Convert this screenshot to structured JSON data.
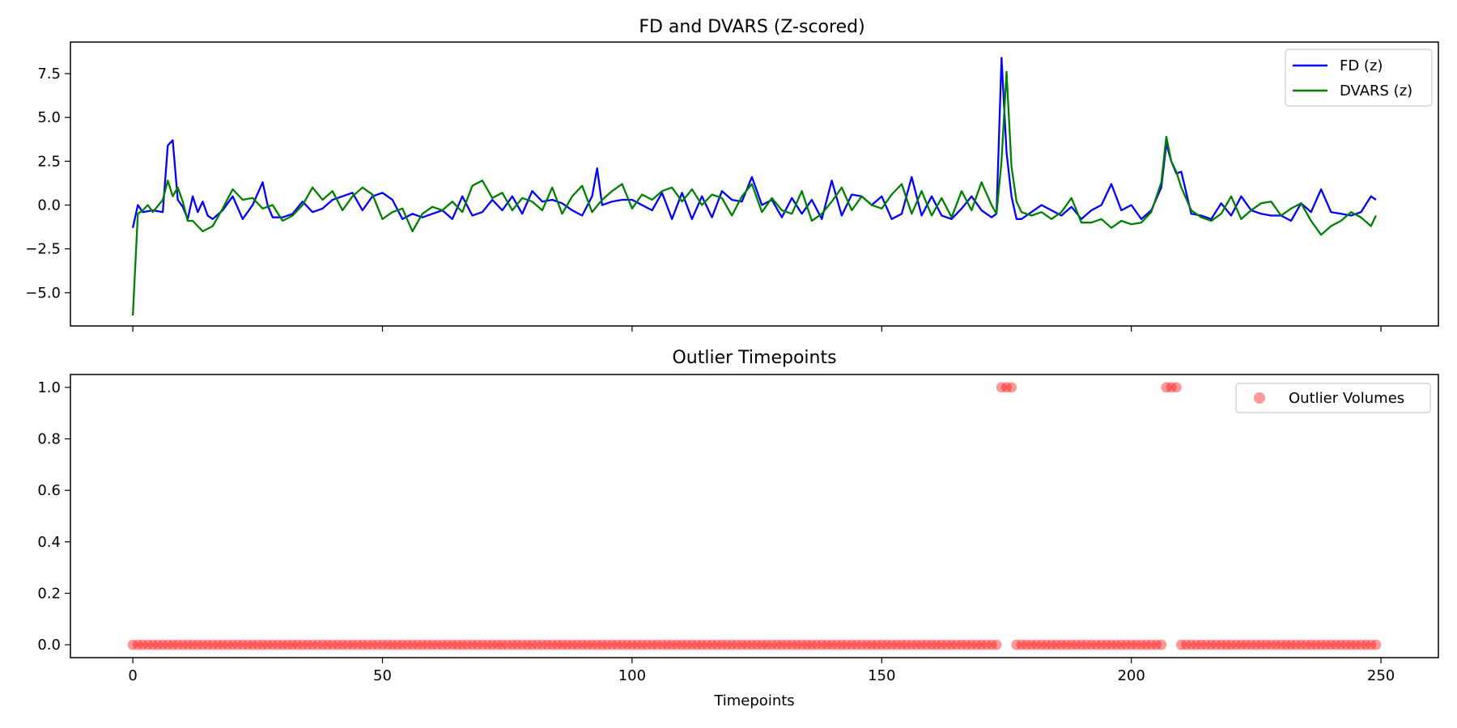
{
  "chart_data": [
    {
      "type": "line",
      "title": "FD and DVARS (Z-scored)",
      "xlabel": "",
      "ylabel": "",
      "xlim": [
        -12.5,
        261.5
      ],
      "ylim": [
        -6.9,
        9.3
      ],
      "x_ticks": [
        0,
        50,
        100,
        150,
        200,
        250
      ],
      "y_ticks": [
        7.5,
        5.0,
        2.5,
        0.0,
        -2.5,
        -5.0
      ],
      "y_tick_labels": [
        "7.5",
        "5.0",
        "2.5",
        "0.0",
        "−2.5",
        "−5.0"
      ],
      "x_tick_labels_visible": false,
      "legend_position": "top-right",
      "series": [
        {
          "name": "FD (z)",
          "color": "#0000ff",
          "x": [
            0,
            1,
            2,
            4,
            6,
            7,
            8,
            9,
            10,
            11,
            12,
            13,
            14,
            15,
            16,
            18,
            20,
            22,
            24,
            26,
            27,
            28,
            30,
            32,
            34,
            36,
            38,
            40,
            42,
            44,
            46,
            48,
            50,
            52,
            54,
            56,
            58,
            60,
            62,
            64,
            66,
            68,
            70,
            72,
            74,
            76,
            78,
            80,
            82,
            84,
            86,
            88,
            90,
            92,
            93,
            94,
            96,
            98,
            100,
            102,
            104,
            106,
            108,
            110,
            112,
            114,
            116,
            118,
            120,
            122,
            124,
            126,
            128,
            130,
            132,
            134,
            136,
            138,
            140,
            142,
            144,
            146,
            148,
            150,
            152,
            154,
            156,
            158,
            160,
            162,
            164,
            166,
            168,
            170,
            172,
            173,
            174,
            175,
            176,
            177,
            178,
            180,
            182,
            184,
            186,
            188,
            190,
            192,
            194,
            196,
            198,
            200,
            202,
            204,
            206,
            207,
            208,
            209,
            210,
            212,
            214,
            216,
            218,
            220,
            222,
            224,
            226,
            228,
            230,
            232,
            234,
            236,
            238,
            240,
            242,
            244,
            246,
            248,
            249
          ],
          "values": [
            -1.3,
            0.0,
            -0.4,
            -0.3,
            -0.4,
            3.4,
            3.7,
            0.3,
            -0.1,
            -0.8,
            0.5,
            -0.4,
            0.2,
            -0.6,
            -0.8,
            -0.3,
            0.5,
            -0.8,
            0.0,
            1.3,
            0.0,
            -0.7,
            -0.7,
            -0.5,
            0.2,
            -0.4,
            -0.2,
            0.3,
            0.5,
            0.7,
            -0.3,
            0.5,
            0.7,
            0.3,
            -0.8,
            -0.5,
            -0.7,
            -0.5,
            -0.3,
            -0.8,
            0.5,
            -0.6,
            -0.4,
            0.3,
            -0.3,
            0.5,
            -0.5,
            0.8,
            0.2,
            0.3,
            0.1,
            -0.3,
            -0.6,
            0.5,
            2.1,
            0.0,
            0.2,
            0.3,
            0.3,
            0.0,
            -0.3,
            0.7,
            -0.8,
            0.7,
            -0.8,
            0.5,
            -0.7,
            0.8,
            0.3,
            0.2,
            1.6,
            0.0,
            0.3,
            -0.7,
            0.4,
            -0.5,
            0.3,
            -0.8,
            1.4,
            -0.6,
            0.6,
            0.5,
            0.0,
            0.5,
            -0.8,
            -0.5,
            1.6,
            -0.6,
            0.5,
            -0.6,
            -0.8,
            -0.2,
            0.5,
            -0.3,
            -0.7,
            -0.5,
            8.4,
            3.0,
            0.5,
            -0.8,
            -0.8,
            -0.4,
            0.0,
            -0.3,
            -0.6,
            -0.1,
            -0.8,
            -0.3,
            0.0,
            1.2,
            -0.3,
            0.0,
            -0.8,
            -0.3,
            1.0,
            3.5,
            2.5,
            1.8,
            1.9,
            -0.5,
            -0.6,
            -0.8,
            0.1,
            -0.6,
            0.5,
            -0.3,
            -0.5,
            -0.6,
            -0.6,
            -0.9,
            0.1,
            -0.4,
            0.9,
            -0.4,
            -0.5,
            -0.6,
            -0.4,
            0.5,
            0.3
          ]
        },
        {
          "name": "DVARS (z)",
          "color": "#008000",
          "x": [
            0,
            1,
            2,
            3,
            4,
            6,
            7,
            8,
            9,
            10,
            11,
            12,
            14,
            16,
            18,
            20,
            22,
            24,
            26,
            28,
            30,
            32,
            34,
            36,
            38,
            40,
            42,
            44,
            46,
            48,
            50,
            52,
            54,
            56,
            58,
            60,
            62,
            64,
            66,
            68,
            70,
            72,
            74,
            76,
            78,
            80,
            82,
            84,
            86,
            88,
            90,
            92,
            94,
            96,
            98,
            100,
            102,
            104,
            106,
            108,
            110,
            112,
            114,
            116,
            118,
            120,
            122,
            124,
            126,
            128,
            130,
            132,
            134,
            136,
            138,
            140,
            142,
            144,
            146,
            148,
            150,
            152,
            154,
            156,
            158,
            160,
            162,
            164,
            166,
            168,
            170,
            172,
            173,
            174,
            175,
            176,
            177,
            178,
            180,
            182,
            184,
            186,
            188,
            190,
            192,
            194,
            196,
            198,
            200,
            202,
            204,
            206,
            207,
            208,
            209,
            210,
            212,
            214,
            216,
            218,
            220,
            222,
            224,
            226,
            228,
            230,
            232,
            234,
            236,
            238,
            240,
            242,
            244,
            246,
            248,
            249
          ],
          "values": [
            -6.3,
            -0.5,
            -0.3,
            0.0,
            -0.4,
            0.3,
            1.4,
            0.5,
            1.0,
            0.2,
            -0.9,
            -0.9,
            -1.5,
            -1.2,
            -0.2,
            0.9,
            0.3,
            0.4,
            -0.2,
            0.0,
            -0.9,
            -0.6,
            0.0,
            1.0,
            0.3,
            0.8,
            -0.3,
            0.5,
            1.0,
            0.6,
            -0.8,
            -0.4,
            -0.2,
            -1.5,
            -0.5,
            -0.1,
            -0.3,
            0.2,
            -0.4,
            1.1,
            1.4,
            0.4,
            0.7,
            -0.3,
            0.4,
            0.2,
            -0.3,
            1.0,
            -0.5,
            0.5,
            1.1,
            -0.4,
            0.3,
            0.8,
            1.2,
            -0.2,
            0.6,
            0.3,
            0.8,
            1.0,
            0.2,
            0.9,
            0.0,
            0.6,
            0.4,
            -0.6,
            0.5,
            1.2,
            -0.4,
            0.4,
            -0.3,
            -0.5,
            0.8,
            -0.9,
            -0.5,
            0.2,
            1.0,
            -0.3,
            0.5,
            0.0,
            -0.2,
            0.6,
            1.2,
            -0.5,
            0.8,
            -0.6,
            0.4,
            -0.7,
            0.8,
            -0.3,
            1.3,
            0.0,
            -0.5,
            2.5,
            7.6,
            2.2,
            0.2,
            -0.4,
            -0.6,
            -0.4,
            -0.8,
            -0.4,
            0.4,
            -1.0,
            -1.0,
            -0.8,
            -1.3,
            -0.9,
            -1.1,
            -1.0,
            -0.4,
            1.3,
            3.9,
            2.5,
            1.9,
            1.0,
            -0.3,
            -0.7,
            -0.9,
            -0.5,
            0.5,
            -0.8,
            -0.3,
            0.1,
            0.2,
            -0.6,
            -0.2,
            0.1,
            -0.9,
            -1.7,
            -1.2,
            -0.9,
            -0.4,
            -0.7,
            -1.2,
            -0.6
          ]
        }
      ]
    },
    {
      "type": "scatter",
      "title": "Outlier Timepoints",
      "xlabel": "Timepoints",
      "ylabel": "",
      "xlim": [
        -12.5,
        261.5
      ],
      "ylim": [
        -0.05,
        1.05
      ],
      "x_ticks": [
        0,
        50,
        100,
        150,
        200,
        250
      ],
      "x_tick_labels": [
        "0",
        "50",
        "100",
        "150",
        "200",
        "250"
      ],
      "y_ticks": [
        0.0,
        0.2,
        0.4,
        0.6,
        0.8,
        1.0
      ],
      "y_tick_labels": [
        "0.0",
        "0.2",
        "0.4",
        "0.6",
        "0.8",
        "1.0"
      ],
      "legend_position": "top-right",
      "series": [
        {
          "name": "Outlier Volumes",
          "color": "#ff0000",
          "x_range": [
            0,
            249
          ],
          "outlier_timepoints": [
            174,
            175,
            176,
            207,
            208,
            209
          ],
          "outlier_value": 1.0,
          "default_value": 0.0
        }
      ]
    }
  ]
}
